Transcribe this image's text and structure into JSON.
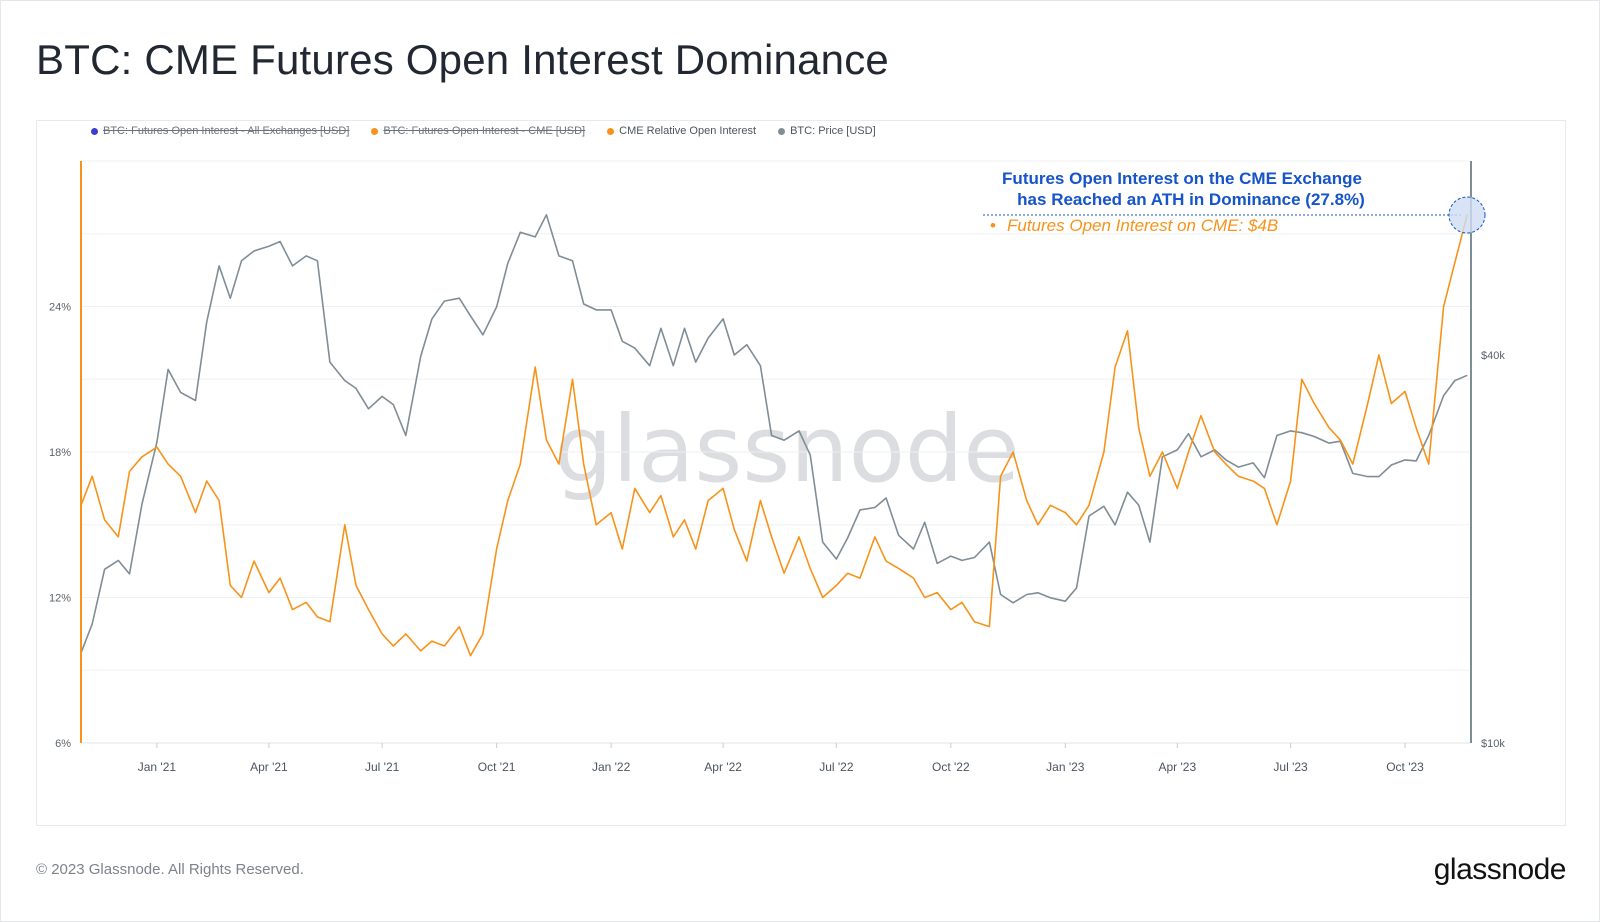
{
  "page": {
    "title": "BTC: CME Futures Open Interest Dominance",
    "copyright": "© 2023 Glassnode. All Rights Reserved.",
    "brand_logo": "glassnode",
    "watermark": "glassnode"
  },
  "legend": [
    {
      "label": "BTC: Futures Open Interest - All Exchanges [USD]",
      "color": "#3b3fc9",
      "disabled": true
    },
    {
      "label": "BTC: Futures Open Interest - CME [USD]",
      "color": "#f7931a",
      "disabled": true
    },
    {
      "label": "CME Relative Open Interest",
      "color": "#f7931a",
      "disabled": false
    },
    {
      "label": "BTC: Price [USD]",
      "color": "#7f8d96",
      "disabled": false
    }
  ],
  "annotation": {
    "line1": "Futures Open Interest on the CME Exchange",
    "line2": "has Reached an ATH in Dominance (27.8%)",
    "bullet": "•",
    "line3": "Futures Open Interest on CME: $4B",
    "color_blue": "#1554c9",
    "color_orange": "#f7931a"
  },
  "chart_data": {
    "type": "line",
    "x_ticks": [
      "Jan '21",
      "Apr '21",
      "Jul '21",
      "Oct '21",
      "Jan '22",
      "Apr '22",
      "Jul '22",
      "Oct '22",
      "Jan '23",
      "Apr '23",
      "Jul '23",
      "Oct '23"
    ],
    "y_left": {
      "ticks": [
        "6%",
        "12%",
        "18%",
        "24%"
      ],
      "range": [
        6,
        30
      ],
      "unit": "%"
    },
    "y_right": {
      "ticks": [
        "$10k",
        "$40k"
      ],
      "scale": "log",
      "range": [
        10000,
        80000
      ]
    },
    "grid": true,
    "legend_position": "top-left",
    "series": [
      {
        "name": "CME Relative Open Interest",
        "axis": "left",
        "color": "#f7931a",
        "x": [
          "2020-11-01",
          "2020-11-10",
          "2020-11-20",
          "2020-12-01",
          "2020-12-10",
          "2020-12-20",
          "2021-01-01",
          "2021-01-10",
          "2021-01-20",
          "2021-02-01",
          "2021-02-10",
          "2021-02-20",
          "2021-03-01",
          "2021-03-10",
          "2021-03-20",
          "2021-04-01",
          "2021-04-10",
          "2021-04-20",
          "2021-05-01",
          "2021-05-10",
          "2021-05-20",
          "2021-06-01",
          "2021-06-10",
          "2021-06-20",
          "2021-07-01",
          "2021-07-10",
          "2021-07-20",
          "2021-08-01",
          "2021-08-10",
          "2021-08-20",
          "2021-09-01",
          "2021-09-10",
          "2021-09-20",
          "2021-10-01",
          "2021-10-10",
          "2021-10-20",
          "2021-11-01",
          "2021-11-10",
          "2021-11-20",
          "2021-12-01",
          "2021-12-10",
          "2021-12-20",
          "2022-01-01",
          "2022-01-10",
          "2022-01-20",
          "2022-02-01",
          "2022-02-10",
          "2022-02-20",
          "2022-03-01",
          "2022-03-10",
          "2022-03-20",
          "2022-04-01",
          "2022-04-10",
          "2022-04-20",
          "2022-05-01",
          "2022-05-10",
          "2022-05-20",
          "2022-06-01",
          "2022-06-10",
          "2022-06-20",
          "2022-07-01",
          "2022-07-10",
          "2022-07-20",
          "2022-08-01",
          "2022-08-10",
          "2022-08-20",
          "2022-09-01",
          "2022-09-10",
          "2022-09-20",
          "2022-10-01",
          "2022-10-10",
          "2022-10-20",
          "2022-11-01",
          "2022-11-10",
          "2022-11-20",
          "2022-12-01",
          "2022-12-10",
          "2022-12-20",
          "2023-01-01",
          "2023-01-10",
          "2023-01-20",
          "2023-02-01",
          "2023-02-10",
          "2023-02-20",
          "2023-03-01",
          "2023-03-10",
          "2023-03-20",
          "2023-04-01",
          "2023-04-10",
          "2023-04-20",
          "2023-05-01",
          "2023-05-10",
          "2023-05-20",
          "2023-06-01",
          "2023-06-10",
          "2023-06-20",
          "2023-07-01",
          "2023-07-10",
          "2023-07-20",
          "2023-08-01",
          "2023-08-10",
          "2023-08-20",
          "2023-09-01",
          "2023-09-10",
          "2023-09-20",
          "2023-10-01",
          "2023-10-10",
          "2023-10-20",
          "2023-11-01",
          "2023-11-10",
          "2023-11-20"
        ],
        "values": [
          15.8,
          17.0,
          15.2,
          14.5,
          17.2,
          17.8,
          18.2,
          17.5,
          17.0,
          15.5,
          16.8,
          16.0,
          12.5,
          12.0,
          13.5,
          12.2,
          12.8,
          11.5,
          11.8,
          11.2,
          11.0,
          15.0,
          12.5,
          11.5,
          10.5,
          10.0,
          10.5,
          9.8,
          10.2,
          10.0,
          10.8,
          9.6,
          10.5,
          14.0,
          16.0,
          17.5,
          21.5,
          18.5,
          17.5,
          21.0,
          17.5,
          15.0,
          15.5,
          14.0,
          16.5,
          15.5,
          16.2,
          14.5,
          15.2,
          14.0,
          16.0,
          16.5,
          14.8,
          13.5,
          16.0,
          14.5,
          13.0,
          14.5,
          13.2,
          12.0,
          12.5,
          13.0,
          12.8,
          14.5,
          13.5,
          13.2,
          12.8,
          12.0,
          12.2,
          11.5,
          11.8,
          11.0,
          10.8,
          17.0,
          18.0,
          16.0,
          15.0,
          15.8,
          15.5,
          15.0,
          15.8,
          18.0,
          21.5,
          23.0,
          19.0,
          17.0,
          18.0,
          16.5,
          18.0,
          19.5,
          18.0,
          17.5,
          17.0,
          16.8,
          16.5,
          15.0,
          16.8,
          21.0,
          20.0,
          19.0,
          18.5,
          17.5,
          20.0,
          22.0,
          20.0,
          20.5,
          19.0,
          17.5,
          24.0,
          25.8,
          27.8
        ]
      },
      {
        "name": "BTC: Price [USD]",
        "axis": "right",
        "color": "#7f8d96",
        "x": [
          "2020-11-01",
          "2020-11-10",
          "2020-11-20",
          "2020-12-01",
          "2020-12-10",
          "2020-12-20",
          "2021-01-01",
          "2021-01-10",
          "2021-01-20",
          "2021-02-01",
          "2021-02-10",
          "2021-02-20",
          "2021-03-01",
          "2021-03-10",
          "2021-03-20",
          "2021-04-01",
          "2021-04-10",
          "2021-04-20",
          "2021-05-01",
          "2021-05-10",
          "2021-05-20",
          "2021-06-01",
          "2021-06-10",
          "2021-06-20",
          "2021-07-01",
          "2021-07-10",
          "2021-07-20",
          "2021-08-01",
          "2021-08-10",
          "2021-08-20",
          "2021-09-01",
          "2021-09-10",
          "2021-09-20",
          "2021-10-01",
          "2021-10-10",
          "2021-10-20",
          "2021-11-01",
          "2021-11-10",
          "2021-11-20",
          "2021-12-01",
          "2021-12-10",
          "2021-12-20",
          "2022-01-01",
          "2022-01-10",
          "2022-01-20",
          "2022-02-01",
          "2022-02-10",
          "2022-02-20",
          "2022-03-01",
          "2022-03-10",
          "2022-03-20",
          "2022-04-01",
          "2022-04-10",
          "2022-04-20",
          "2022-05-01",
          "2022-05-10",
          "2022-05-20",
          "2022-06-01",
          "2022-06-10",
          "2022-06-20",
          "2022-07-01",
          "2022-07-10",
          "2022-07-20",
          "2022-08-01",
          "2022-08-10",
          "2022-08-20",
          "2022-09-01",
          "2022-09-10",
          "2022-09-20",
          "2022-10-01",
          "2022-10-10",
          "2022-10-20",
          "2022-11-01",
          "2022-11-10",
          "2022-11-20",
          "2022-12-01",
          "2022-12-10",
          "2022-12-20",
          "2023-01-01",
          "2023-01-10",
          "2023-01-20",
          "2023-02-01",
          "2023-02-10",
          "2023-02-20",
          "2023-03-01",
          "2023-03-10",
          "2023-03-20",
          "2023-04-01",
          "2023-04-10",
          "2023-04-20",
          "2023-05-01",
          "2023-05-10",
          "2023-05-20",
          "2023-06-01",
          "2023-06-10",
          "2023-06-20",
          "2023-07-01",
          "2023-07-10",
          "2023-07-20",
          "2023-08-01",
          "2023-08-10",
          "2023-08-20",
          "2023-09-01",
          "2023-09-10",
          "2023-09-20",
          "2023-10-01",
          "2023-10-10",
          "2023-10-20",
          "2023-11-01",
          "2023-11-10",
          "2023-11-20"
        ],
        "values": [
          13800,
          15300,
          18600,
          19200,
          18300,
          23500,
          29300,
          38000,
          35000,
          34000,
          45000,
          55000,
          49000,
          56000,
          58000,
          59000,
          60000,
          55000,
          57000,
          56000,
          39000,
          36500,
          35500,
          33000,
          34500,
          33500,
          30000,
          39800,
          45500,
          48500,
          49000,
          46000,
          43000,
          47500,
          55500,
          62000,
          61000,
          66000,
          57000,
          56000,
          48000,
          47000,
          47000,
          42000,
          41000,
          38500,
          44000,
          38500,
          44000,
          39000,
          42500,
          45500,
          40000,
          41500,
          38500,
          30000,
          29500,
          30500,
          28000,
          20500,
          19300,
          20800,
          23000,
          23200,
          24000,
          21000,
          20000,
          22000,
          19000,
          19500,
          19200,
          19400,
          20500,
          17000,
          16500,
          17000,
          17100,
          16800,
          16600,
          17400,
          22500,
          23300,
          21800,
          24500,
          23400,
          20500,
          27800,
          28500,
          30200,
          27800,
          28500,
          27500,
          26800,
          27200,
          25800,
          30000,
          30500,
          30300,
          29900,
          29200,
          29400,
          26200,
          25900,
          25900,
          27000,
          27500,
          27400,
          30000,
          34600,
          36500,
          37200
        ]
      }
    ]
  }
}
